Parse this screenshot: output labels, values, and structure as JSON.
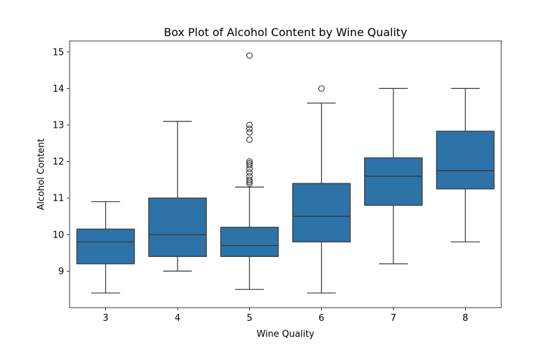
{
  "chart_data": {
    "type": "box",
    "title": "Box Plot of Alcohol Content by Wine Quality",
    "xlabel": "Wine Quality",
    "ylabel": "Alcohol Content",
    "ylim": [
      8.0,
      15.3
    ],
    "yticks": [
      9,
      10,
      11,
      12,
      13,
      14,
      15
    ],
    "grid": false,
    "legend": "none",
    "colors": {
      "box_fill": "#2e73a8",
      "line": "#333333",
      "frame": "#000000"
    },
    "categories": [
      "3",
      "4",
      "5",
      "6",
      "7",
      "8"
    ],
    "boxes": [
      {
        "category": "3",
        "whisker_low": 8.4,
        "q1": 9.2,
        "median": 9.8,
        "q3": 10.15,
        "whisker_high": 10.9,
        "outliers": []
      },
      {
        "category": "4",
        "whisker_low": 9.0,
        "q1": 9.4,
        "median": 10.0,
        "q3": 11.0,
        "whisker_high": 13.1,
        "outliers": []
      },
      {
        "category": "5",
        "whisker_low": 8.5,
        "q1": 9.4,
        "median": 9.7,
        "q3": 10.2,
        "whisker_high": 11.3,
        "outliers": [
          11.4,
          11.45,
          11.5,
          11.6,
          11.7,
          11.8,
          11.9,
          11.95,
          12.0,
          12.6,
          12.8,
          12.9,
          13.0,
          14.9
        ]
      },
      {
        "category": "6",
        "whisker_low": 8.4,
        "q1": 9.8,
        "median": 10.5,
        "q3": 11.4,
        "whisker_high": 13.6,
        "outliers": [
          14.0
        ]
      },
      {
        "category": "7",
        "whisker_low": 9.2,
        "q1": 10.8,
        "median": 11.6,
        "q3": 12.1,
        "whisker_high": 14.0,
        "outliers": []
      },
      {
        "category": "8",
        "whisker_low": 9.8,
        "q1": 11.25,
        "median": 11.75,
        "q3": 12.83,
        "whisker_high": 14.0,
        "outliers": []
      }
    ]
  }
}
